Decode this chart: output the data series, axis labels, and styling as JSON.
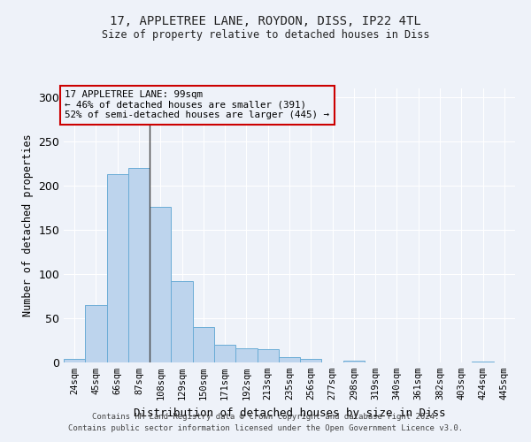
{
  "title1": "17, APPLETREE LANE, ROYDON, DISS, IP22 4TL",
  "title2": "Size of property relative to detached houses in Diss",
  "xlabel": "Distribution of detached houses by size in Diss",
  "ylabel": "Number of detached properties",
  "footnote1": "Contains HM Land Registry data © Crown copyright and database right 2024.",
  "footnote2": "Contains public sector information licensed under the Open Government Licence v3.0.",
  "annotation_line1": "17 APPLETREE LANE: 99sqm",
  "annotation_line2": "← 46% of detached houses are smaller (391)",
  "annotation_line3": "52% of semi-detached houses are larger (445) →",
  "bar_color": "#bdd4ed",
  "bar_edge_color": "#6aacd6",
  "property_line_color": "#444444",
  "annotation_box_edgecolor": "#cc0000",
  "background_color": "#eef2f9",
  "categories": [
    "24sqm",
    "45sqm",
    "66sqm",
    "87sqm",
    "108sqm",
    "129sqm",
    "150sqm",
    "171sqm",
    "192sqm",
    "213sqm",
    "235sqm",
    "256sqm",
    "277sqm",
    "298sqm",
    "319sqm",
    "340sqm",
    "361sqm",
    "382sqm",
    "403sqm",
    "424sqm",
    "445sqm"
  ],
  "values": [
    4,
    65,
    213,
    220,
    176,
    92,
    40,
    20,
    16,
    15,
    6,
    4,
    0,
    2,
    0,
    0,
    0,
    0,
    0,
    1,
    0
  ],
  "ylim": [
    0,
    310
  ],
  "yticks": [
    0,
    50,
    100,
    150,
    200,
    250,
    300
  ],
  "property_line_x": 3.5,
  "grid_color": "#ffffff",
  "tick_label_fontsize": 7.5,
  "ylabel_fontsize": 8.5,
  "xlabel_fontsize": 9
}
